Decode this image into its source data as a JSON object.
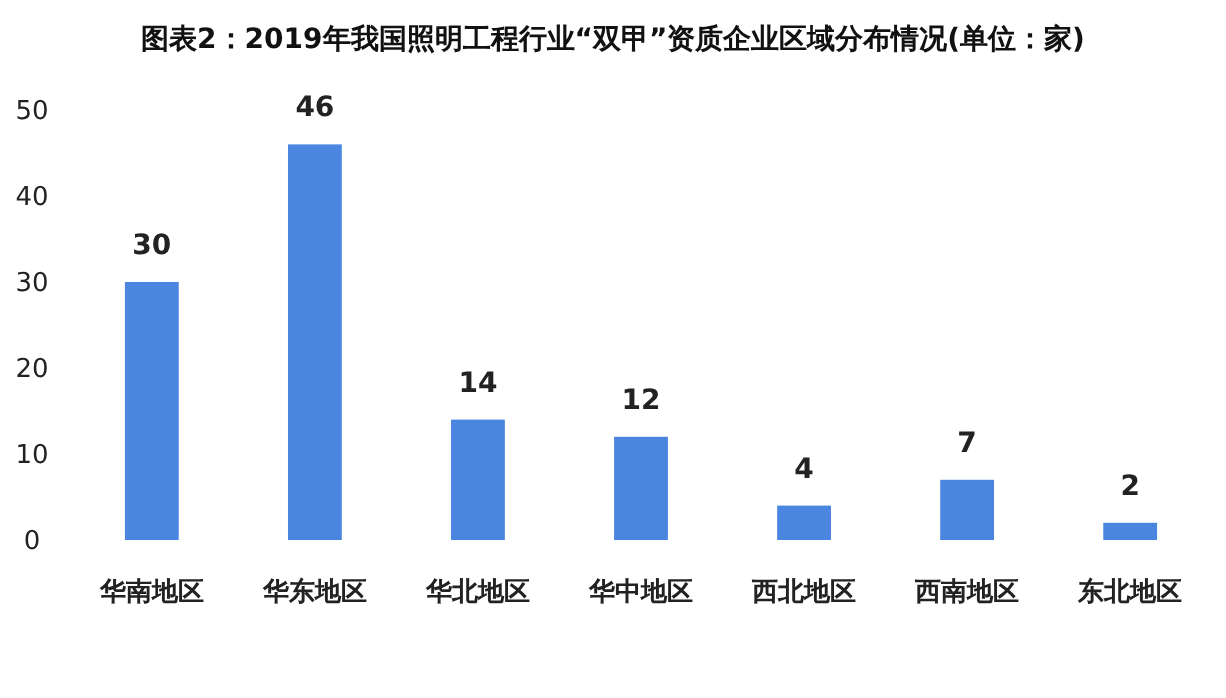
{
  "chart_data": {
    "type": "bar",
    "title": "图表2：2019年我国照明工程行业“双甲”资质企业区域分布情况(单位：家)",
    "categories": [
      "华南地区",
      "华东地区",
      "华北地区",
      "华中地区",
      "西北地区",
      "西南地区",
      "东北地区"
    ],
    "values": [
      30,
      46,
      14,
      12,
      4,
      7,
      2
    ],
    "color": "#4a86e0",
    "ylim": [
      0,
      50
    ],
    "yticks": [
      0,
      10,
      20,
      30,
      40,
      50
    ],
    "grid": false,
    "data_labels": true
  }
}
